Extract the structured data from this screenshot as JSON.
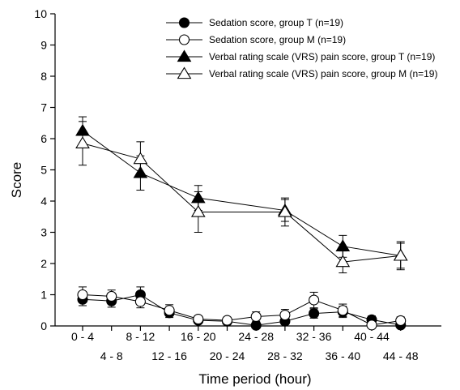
{
  "chart_data": {
    "type": "line",
    "ylabel": "Score",
    "xlabel": "Time period (hour)",
    "ylim": [
      0,
      10
    ],
    "yticks": [
      0,
      1,
      2,
      3,
      4,
      5,
      6,
      7,
      8,
      9,
      10
    ],
    "grid": false,
    "legend_position": "top-right",
    "categories": [
      "0 - 4",
      "4 - 8",
      "8 - 12",
      "12 - 16",
      "16 - 20",
      "20 - 24",
      "24 - 28",
      "28 - 32",
      "32 - 36",
      "36 - 40",
      "40 - 44",
      "44 - 48"
    ],
    "series": [
      {
        "name": "Sedation score, group T (n=19)",
        "marker": "circle-filled",
        "values": [
          0.85,
          0.8,
          1.0,
          0.42,
          0.18,
          0.15,
          0.02,
          0.15,
          0.4,
          0.45,
          0.2,
          0.03
        ],
        "errors": [
          0.2,
          0.2,
          0.25,
          0.15,
          0.1,
          0.1,
          0.08,
          0.1,
          0.15,
          0.18,
          0.12,
          0.06
        ]
      },
      {
        "name": "Sedation score, group M (n=19)",
        "marker": "circle-open",
        "values": [
          1.0,
          0.95,
          0.78,
          0.5,
          0.22,
          0.18,
          0.3,
          0.35,
          0.83,
          0.5,
          0.03,
          0.17
        ],
        "errors": [
          0.25,
          0.2,
          0.2,
          0.18,
          0.1,
          0.1,
          0.15,
          0.18,
          0.25,
          0.2,
          0.08,
          0.12
        ]
      },
      {
        "name": "Verbal rating scale (VRS) pain score, group T (n=19)",
        "marker": "triangle-filled",
        "values": [
          6.25,
          null,
          4.9,
          null,
          4.1,
          null,
          null,
          3.7,
          null,
          2.55,
          null,
          2.25
        ],
        "errors": [
          0.45,
          null,
          0.55,
          null,
          0.4,
          null,
          null,
          0.35,
          null,
          0.35,
          null,
          0.4
        ]
      },
      {
        "name": "Verbal rating scale (VRS) pain score, group M (n=19)",
        "marker": "triangle-open",
        "values": [
          5.85,
          null,
          5.35,
          null,
          3.65,
          null,
          null,
          3.65,
          null,
          2.05,
          null,
          2.25
        ],
        "errors": [
          0.7,
          null,
          0.55,
          null,
          0.65,
          null,
          null,
          0.45,
          null,
          0.35,
          null,
          0.45
        ]
      }
    ]
  }
}
